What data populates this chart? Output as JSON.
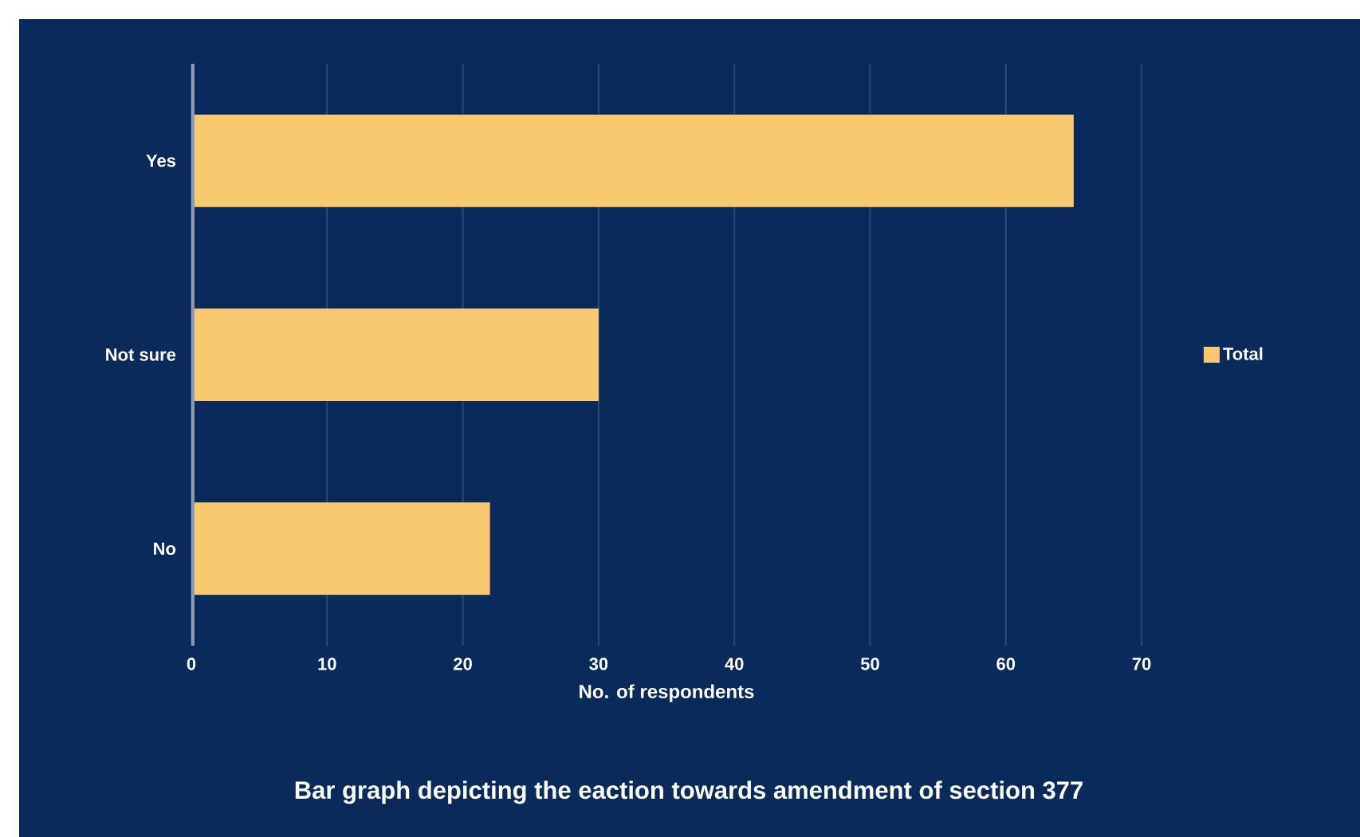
{
  "chart_data": {
    "type": "bar",
    "orientation": "horizontal",
    "categories": [
      "Yes",
      "Not sure",
      "No"
    ],
    "series": [
      {
        "name": "Total",
        "color": "#f9c96f",
        "values": [
          65,
          30,
          22
        ]
      }
    ],
    "xlim": [
      0,
      70
    ],
    "xticks": [
      0,
      10,
      20,
      30,
      40,
      50,
      60,
      70
    ],
    "xlabel": "No. of respondents",
    "grid": "x",
    "legend": "right",
    "annotations": [
      "Bar graph depicting the eaction towards amendment of section 377"
    ]
  }
}
